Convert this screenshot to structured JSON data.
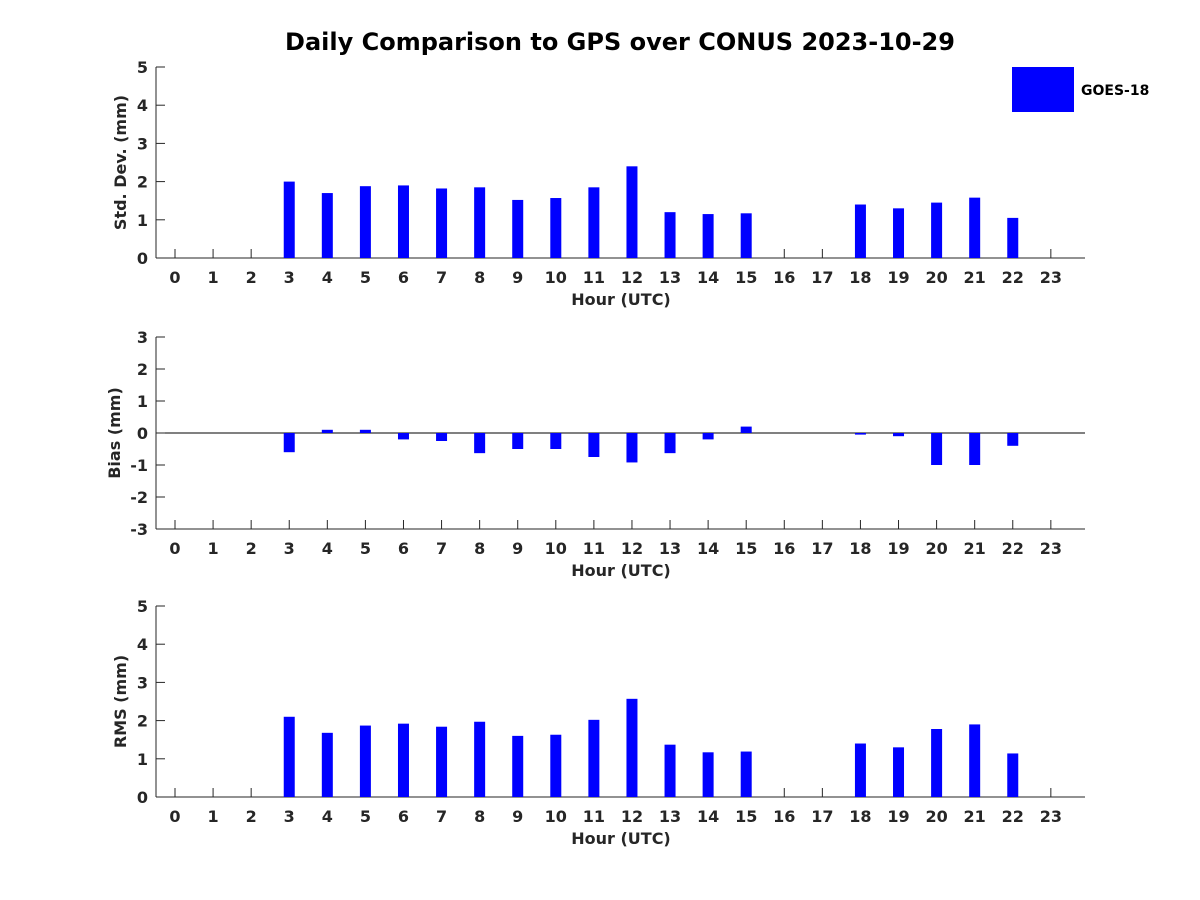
{
  "title": "Daily Comparison to GPS over CONUS 2023-10-29",
  "legend": {
    "label": "GOES-18",
    "color": "#0000ff",
    "position": "top-right"
  },
  "chart_data": [
    {
      "type": "bar",
      "ylabel": "Std. Dev. (mm)",
      "xlabel": "Hour (UTC)",
      "ylim": [
        0,
        5
      ],
      "yticks": [
        0,
        1,
        2,
        3,
        4,
        5
      ],
      "x": [
        0,
        1,
        2,
        3,
        4,
        5,
        6,
        7,
        8,
        9,
        10,
        11,
        12,
        13,
        14,
        15,
        16,
        17,
        18,
        19,
        20,
        21,
        22,
        23
      ],
      "series": [
        {
          "name": "GOES-18",
          "values": [
            null,
            null,
            null,
            2.0,
            1.7,
            1.88,
            1.9,
            1.82,
            1.85,
            1.52,
            1.57,
            1.85,
            2.4,
            1.2,
            1.15,
            1.17,
            null,
            null,
            1.4,
            1.3,
            1.45,
            1.58,
            1.05,
            null
          ]
        }
      ]
    },
    {
      "type": "bar",
      "ylabel": "Bias (mm)",
      "xlabel": "Hour (UTC)",
      "ylim": [
        -3,
        3
      ],
      "yticks": [
        -3,
        -2,
        -1,
        0,
        1,
        2,
        3
      ],
      "x": [
        0,
        1,
        2,
        3,
        4,
        5,
        6,
        7,
        8,
        9,
        10,
        11,
        12,
        13,
        14,
        15,
        16,
        17,
        18,
        19,
        20,
        21,
        22,
        23
      ],
      "series": [
        {
          "name": "GOES-18",
          "values": [
            null,
            null,
            null,
            -0.6,
            0.1,
            0.1,
            -0.2,
            -0.25,
            -0.63,
            -0.5,
            -0.5,
            -0.75,
            -0.92,
            -0.63,
            -0.2,
            0.2,
            null,
            null,
            -0.05,
            -0.1,
            -1.0,
            -1.0,
            -0.4,
            null
          ]
        }
      ]
    },
    {
      "type": "bar",
      "ylabel": "RMS (mm)",
      "xlabel": "Hour (UTC)",
      "ylim": [
        0,
        5
      ],
      "yticks": [
        0,
        1,
        2,
        3,
        4,
        5
      ],
      "x": [
        0,
        1,
        2,
        3,
        4,
        5,
        6,
        7,
        8,
        9,
        10,
        11,
        12,
        13,
        14,
        15,
        16,
        17,
        18,
        19,
        20,
        21,
        22,
        23
      ],
      "series": [
        {
          "name": "GOES-18",
          "values": [
            null,
            null,
            null,
            2.1,
            1.68,
            1.87,
            1.92,
            1.84,
            1.97,
            1.6,
            1.63,
            2.02,
            2.57,
            1.37,
            1.17,
            1.19,
            null,
            null,
            1.4,
            1.3,
            1.78,
            1.9,
            1.14,
            null
          ]
        }
      ]
    }
  ]
}
